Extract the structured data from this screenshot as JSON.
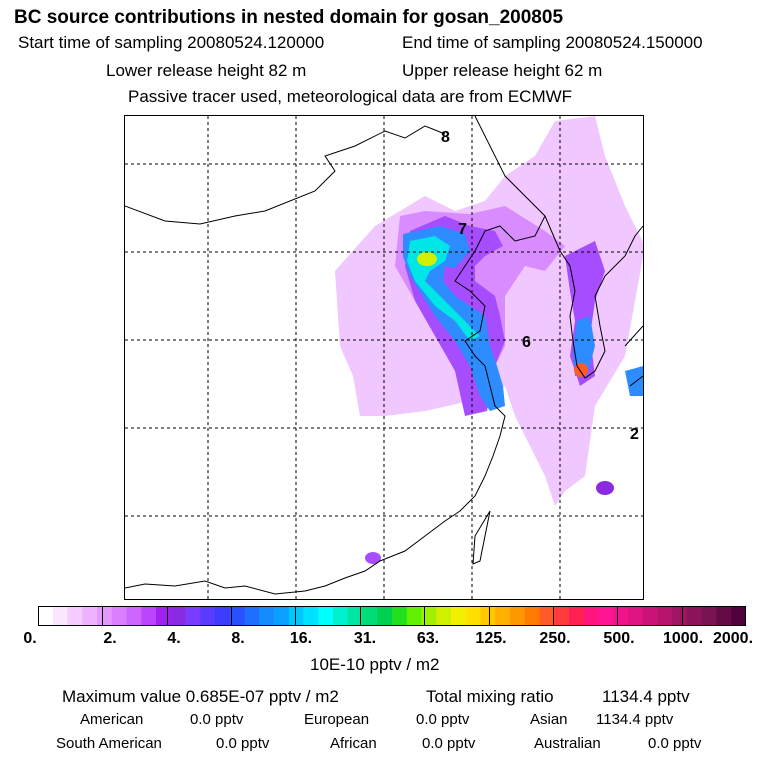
{
  "header": {
    "title": "BC  source contributions in nested domain for gosan_200805",
    "start_label": "Start time of sampling 20080524.120000",
    "end_label": "End time of sampling 20080524.150000",
    "lower_label": "Lower release height   82 m",
    "upper_label": "Upper release height   62 m",
    "tracer_label": "Passive tracer used, meteorological data are from ECMWF"
  },
  "map": {
    "contour_labels": [
      "8",
      "7",
      "6",
      "2"
    ]
  },
  "colorbar": {
    "tick_labels": [
      "0.",
      "2.",
      "4.",
      "8.",
      "16.",
      "31.",
      "63.",
      "125.",
      "250.",
      "500.",
      "1000.",
      "2000."
    ],
    "unit_label": "10E-10 pptv / m2",
    "colors": [
      "#ffffff",
      "#fbe6ff",
      "#f5ccff",
      "#efb2ff",
      "#e599ff",
      "#d97fff",
      "#cc66ff",
      "#bb44ff",
      "#a020f0",
      "#8a2be2",
      "#7a3cff",
      "#5a3cff",
      "#3c3cff",
      "#2850ff",
      "#1e6eff",
      "#148cff",
      "#0aa0ff",
      "#00c8ff",
      "#00e0ff",
      "#00ffff",
      "#00f0d0",
      "#00e6a0",
      "#00dc78",
      "#00d050",
      "#20e020",
      "#60f000",
      "#a0f000",
      "#d0f000",
      "#f0f000",
      "#ffe000",
      "#ffc800",
      "#ffb000",
      "#ff9800",
      "#ff7a00",
      "#ff5a28",
      "#ff3c3c",
      "#ff2050",
      "#ff1480",
      "#ff1493",
      "#f0148c",
      "#e01482",
      "#cc1478",
      "#b8146e",
      "#a01464",
      "#8c145a",
      "#781450",
      "#640a46",
      "#50003c"
    ]
  },
  "stats": {
    "max_label": "Maximum value  0.685E-07 pptv / m2",
    "total_label": "Total mixing ratio",
    "total_value": "1134.4 pptv",
    "american_label": "American",
    "american_value": "0.0 pptv",
    "european_label": "European",
    "european_value": "0.0 pptv",
    "asian_label": "Asian",
    "asian_value": "1134.4 pptv",
    "south_american_label": "South American",
    "south_american_value": "0.0 pptv",
    "african_label": "African",
    "african_value": "0.0 pptv",
    "australian_label": "Australian",
    "australian_value": "0.0 pptv"
  },
  "chart_data": {
    "type": "heatmap",
    "title": "BC  source contributions in nested domain for gosan_200805",
    "colorbar_levels": [
      0,
      2,
      4,
      8,
      16,
      31,
      63,
      125,
      250,
      500,
      1000,
      2000
    ],
    "colorbar_unit": "10E-10 pptv / m2",
    "contour_labels": [
      "8",
      "7",
      "6",
      "2"
    ],
    "maximum_value": "0.685E-07 pptv / m2",
    "total_mixing_ratio": "1134.4 pptv"
  }
}
